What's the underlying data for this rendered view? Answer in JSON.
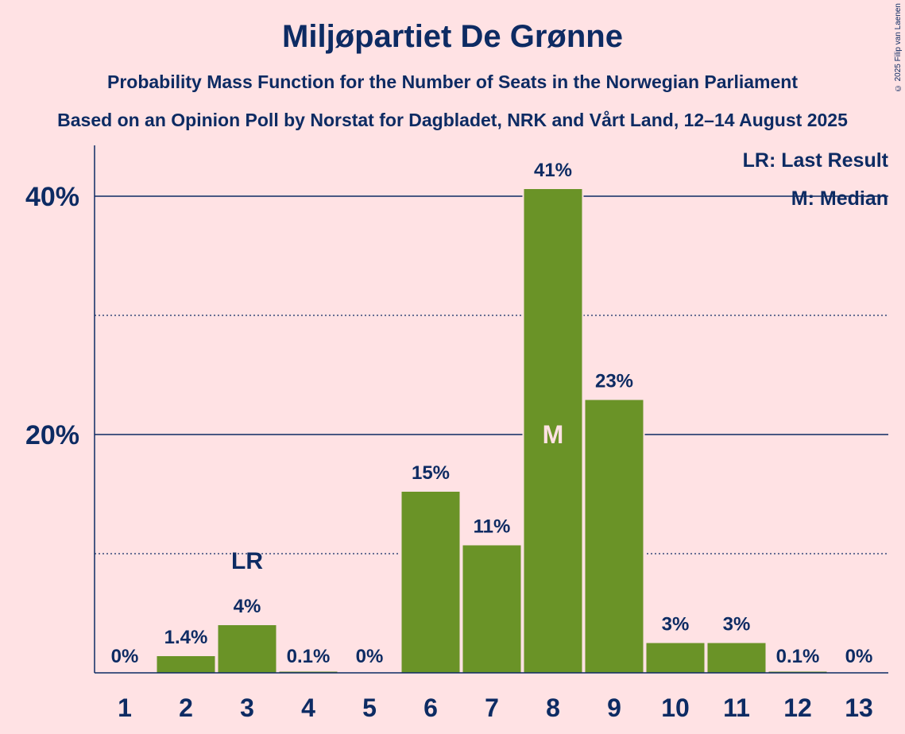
{
  "title": "Miljøpartiet De Grønne",
  "subtitle": "Probability Mass Function for the Number of Seats in the Norwegian Parliament",
  "subtitle2": "Based on an Opinion Poll by Norstat for Dagbladet, NRK and Vårt Land, 12–14 August 2025",
  "copyright": "© 2025 Filip van Laenen",
  "legend": {
    "last_result": "LR: Last Result",
    "median": "M: Median"
  },
  "colors": {
    "background": "#ffe2e4",
    "bar": "#6a9327",
    "text": "#0d2b63"
  },
  "chart_data": {
    "type": "bar",
    "categories": [
      "1",
      "2",
      "3",
      "4",
      "5",
      "6",
      "7",
      "8",
      "9",
      "10",
      "11",
      "12",
      "13"
    ],
    "values": [
      0,
      1.4,
      4,
      0.1,
      0,
      15.2,
      10.7,
      40.6,
      22.9,
      2.5,
      2.5,
      0.1,
      0
    ],
    "labels": [
      "0%",
      "1.4%",
      "4%",
      "0.1%",
      "0%",
      "15%",
      "11%",
      "41%",
      "23%",
      "3%",
      "3%",
      "0.1%",
      "0%"
    ],
    "ylim": [
      0,
      44
    ],
    "yticks": [
      20,
      40
    ],
    "ytick_labels": [
      "20%",
      "40%"
    ],
    "minor_gridlines": [
      10,
      30
    ],
    "last_result": {
      "seat": "3",
      "label": "LR"
    },
    "median": {
      "seat": "8",
      "label": "M"
    },
    "legend_position": "top-right"
  }
}
